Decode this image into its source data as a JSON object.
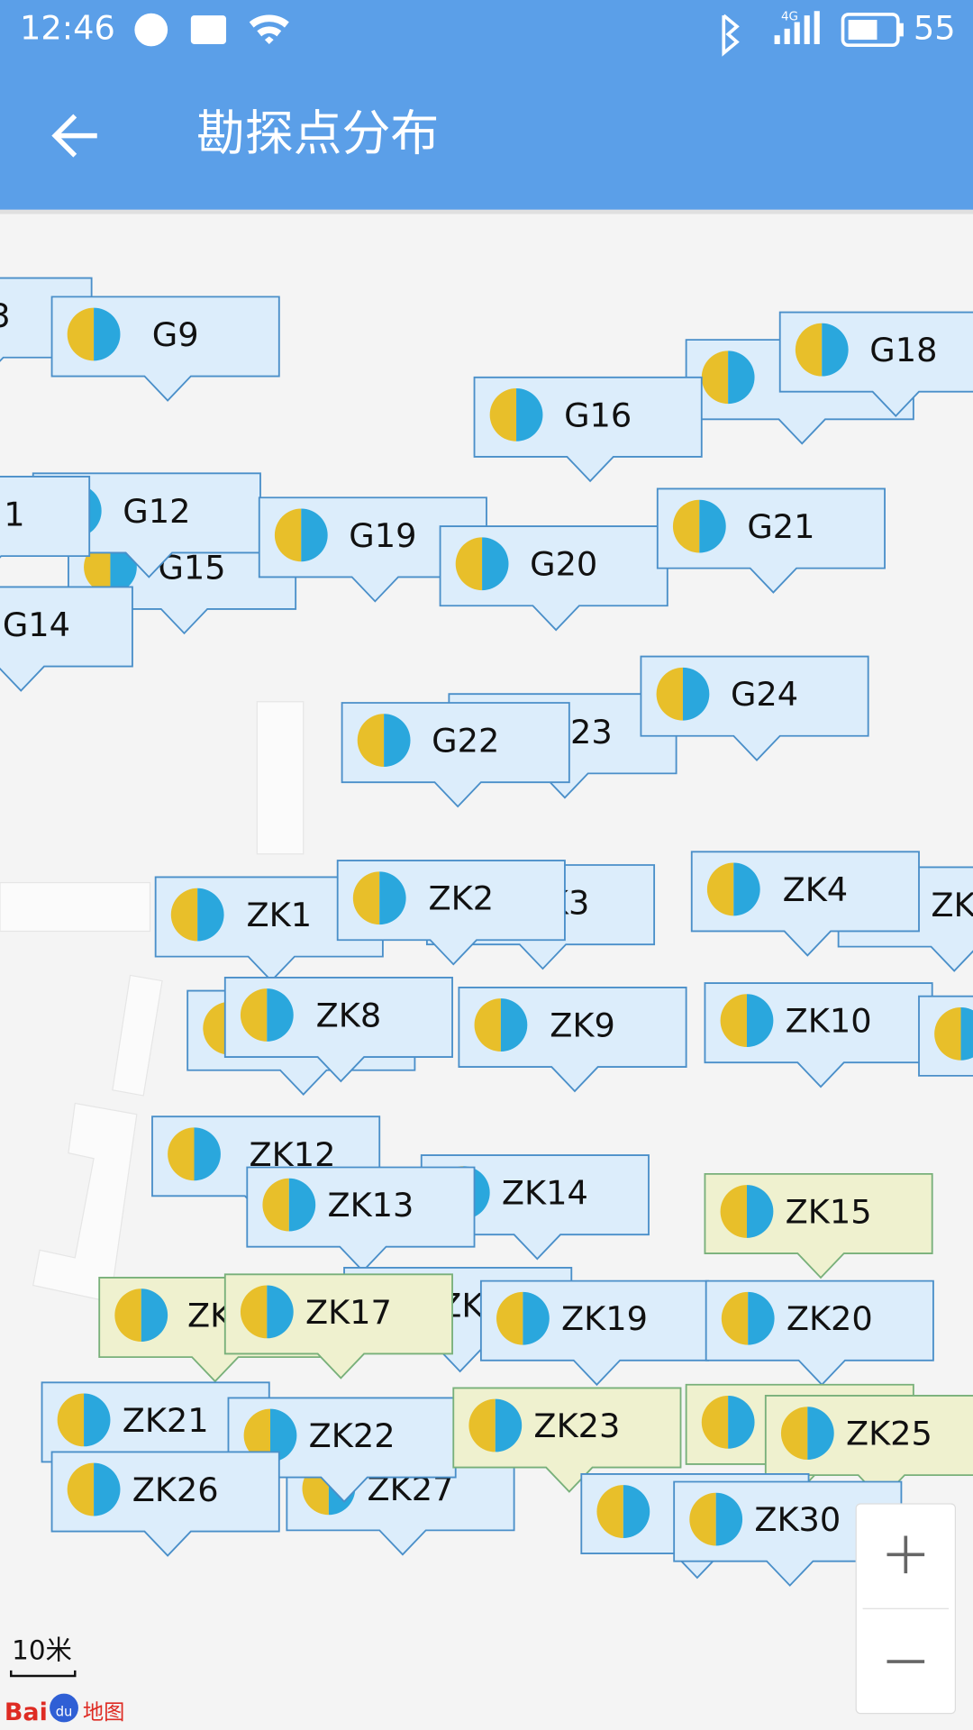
{
  "status_bar": {
    "time": "12:46",
    "network": "4G",
    "battery": "55"
  },
  "app_bar": {
    "title": "勘探点分布"
  },
  "map": {
    "markers": [
      {
        "label": "3",
        "style": "blue"
      },
      {
        "label": "G9",
        "style": "blue"
      },
      {
        "style": "blue"
      },
      {
        "label": "G18",
        "style": "blue"
      },
      {
        "label": "G16",
        "style": "blue"
      },
      {
        "label": "G15",
        "style": "blue"
      },
      {
        "label": "G12",
        "style": "blue"
      },
      {
        "label": "1",
        "style": "blue"
      },
      {
        "label": "G19",
        "style": "blue"
      },
      {
        "label": "G20",
        "style": "blue"
      },
      {
        "label": "G21",
        "style": "blue"
      },
      {
        "label": "G14",
        "style": "blue"
      },
      {
        "label": "23",
        "style": "blue"
      },
      {
        "label": "G24",
        "style": "blue"
      },
      {
        "label": "G22",
        "style": "blue"
      },
      {
        "label": "K3",
        "style": "blue"
      },
      {
        "label": "ZK1",
        "style": "blue"
      },
      {
        "label": "ZK2",
        "style": "blue"
      },
      {
        "label": "ZK",
        "style": "blue"
      },
      {
        "label": "ZK4",
        "style": "blue"
      },
      {
        "style": "blue"
      },
      {
        "label": "ZK8",
        "style": "blue"
      },
      {
        "label": "ZK9",
        "style": "blue"
      },
      {
        "label": "ZK10",
        "style": "blue"
      },
      {
        "style": "blue"
      },
      {
        "label": "ZK12",
        "style": "blue"
      },
      {
        "label": "ZK14",
        "style": "blue"
      },
      {
        "label": "ZK13",
        "style": "blue"
      },
      {
        "label": "ZK15",
        "style": "yellow"
      },
      {
        "label": "ZK",
        "style": "blue"
      },
      {
        "label": "ZK",
        "style": "yellow"
      },
      {
        "label": "ZK17",
        "style": "yellow"
      },
      {
        "label": "ZK19",
        "style": "blue"
      },
      {
        "label": "ZK20",
        "style": "blue"
      },
      {
        "label": "ZK21",
        "style": "blue"
      },
      {
        "label": "ZK27",
        "style": "blue"
      },
      {
        "label": "ZK22",
        "style": "blue"
      },
      {
        "label": "ZK26",
        "style": "blue"
      },
      {
        "label": "ZK23",
        "style": "yellow"
      },
      {
        "style": "yellow"
      },
      {
        "label": "ZK25",
        "style": "yellow"
      },
      {
        "style": "blue"
      },
      {
        "label": "ZK30",
        "style": "blue"
      }
    ],
    "scale": "10米",
    "logo": {
      "left": "Bai",
      "paw": "du",
      "right": "地图"
    }
  }
}
